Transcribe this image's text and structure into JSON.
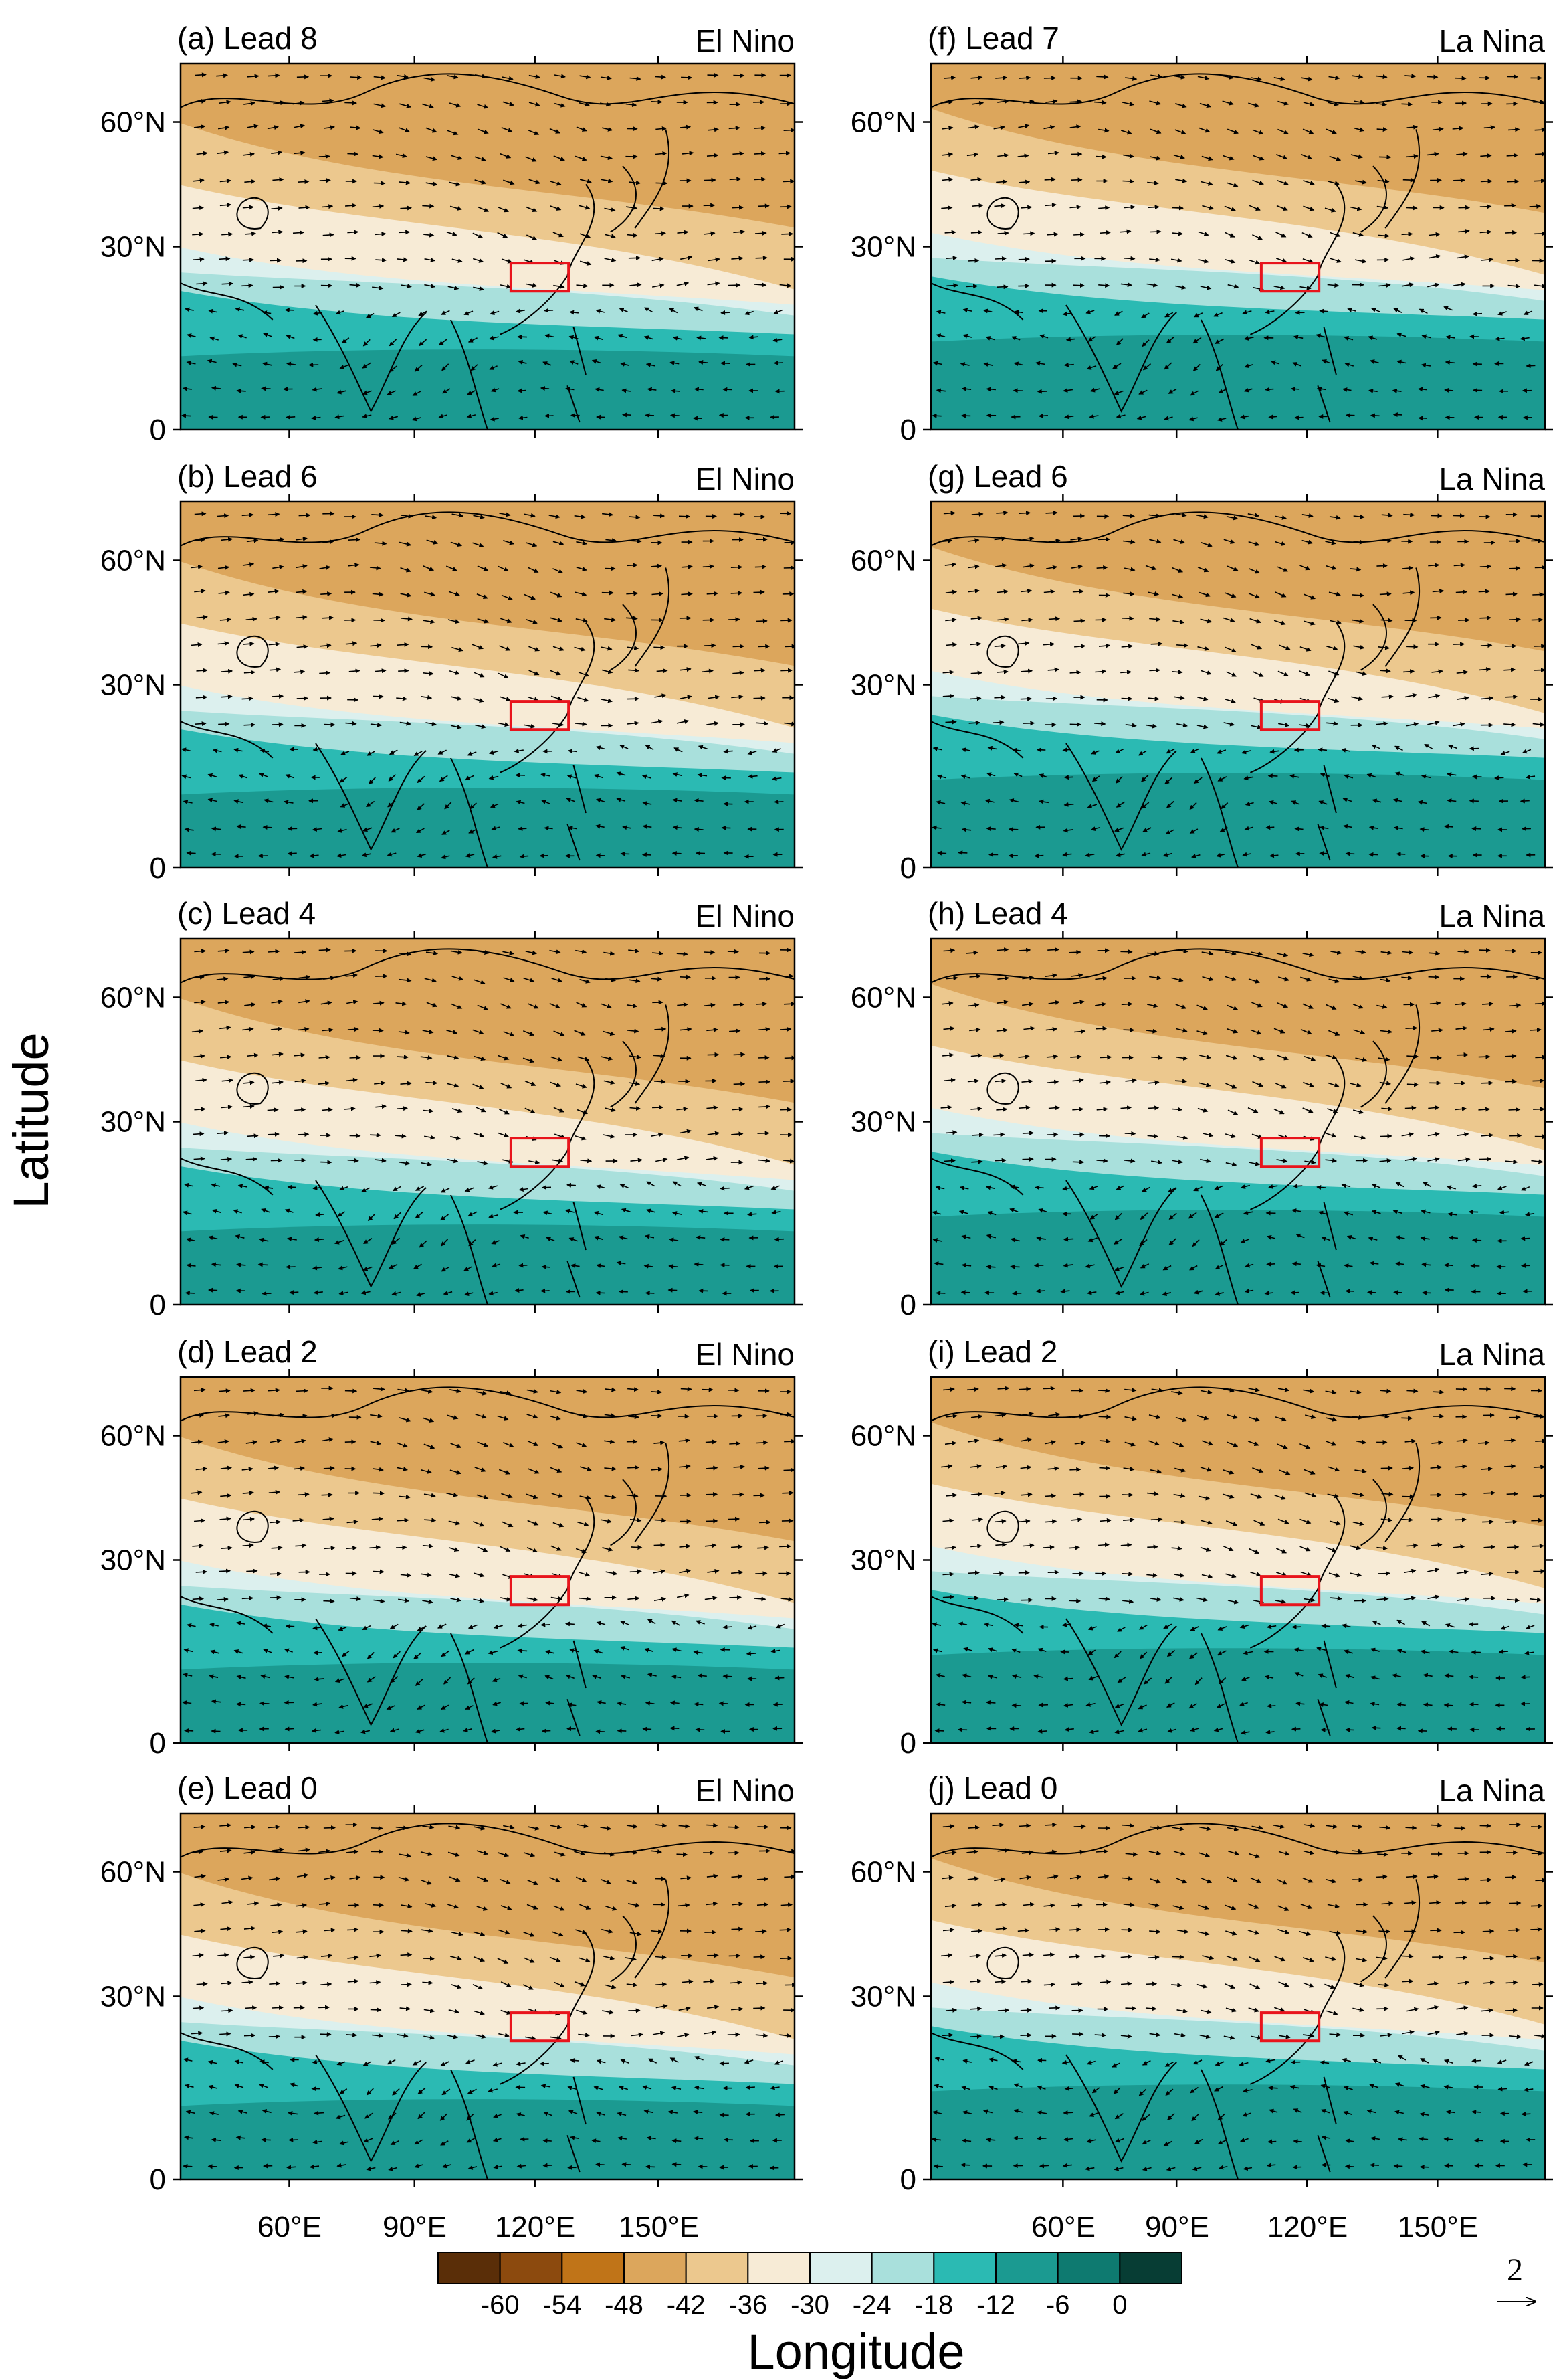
{
  "figure": {
    "ylabel": "Latitude",
    "xlabel": "Longitude",
    "vector_ref": {
      "value": "2"
    }
  },
  "axes": {
    "lat_ticks": [
      "0",
      "30°N",
      "60°N"
    ],
    "lon_ticks": [
      "60°E",
      "90°E",
      "120°E",
      "150°E"
    ]
  },
  "colorbar": {
    "labels": [
      "-60",
      "-54",
      "-48",
      "-42",
      "-36",
      "-30",
      "-24",
      "-18",
      "-12",
      "-6",
      "0"
    ],
    "colors": [
      "#5a2e08",
      "#8c4a0e",
      "#c07418",
      "#dca65c",
      "#ecc88e",
      "#f7ebd6",
      "#dcf0ee",
      "#a9e0dc",
      "#2bbab3",
      "#1b9a91",
      "#0e7a70",
      "#073d34"
    ]
  },
  "panels": [
    {
      "id": "a",
      "label": "(a) Lead 8",
      "phase": "El Nino"
    },
    {
      "id": "b",
      "label": "(b) Lead 6",
      "phase": "El Nino"
    },
    {
      "id": "c",
      "label": "(c) Lead 4",
      "phase": "El Nino"
    },
    {
      "id": "d",
      "label": "(d) Lead 2",
      "phase": "El Nino"
    },
    {
      "id": "e",
      "label": "(e) Lead 0",
      "phase": "El Nino"
    },
    {
      "id": "f",
      "label": "(f) Lead 7",
      "phase": "La Nina"
    },
    {
      "id": "g",
      "label": "(g) Lead 6",
      "phase": "La Nina"
    },
    {
      "id": "h",
      "label": "(h) Lead 4",
      "phase": "La Nina"
    },
    {
      "id": "i",
      "label": "(i) Lead 2",
      "phase": "La Nina"
    },
    {
      "id": "j",
      "label": "(j) Lead 0",
      "phase": "La Nina"
    }
  ]
}
